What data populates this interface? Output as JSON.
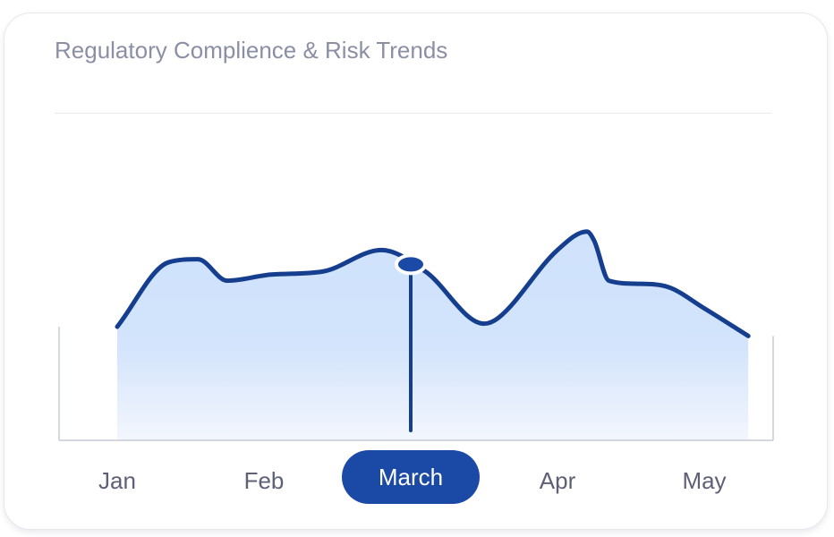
{
  "card": {
    "title": "Regulatory Complience & Risk Trends"
  },
  "colors": {
    "line": "#153f8e",
    "fill_top": "#cfe2fc",
    "fill_bottom": "#f3f6fd",
    "highlight": "#1a4aa6",
    "axis": "#c7cad6"
  },
  "chart_data": {
    "type": "area",
    "title": "",
    "xlabel": "",
    "ylabel": "",
    "categories": [
      "Jan",
      "Feb",
      "March",
      "Apr",
      "May"
    ],
    "selected_category": "March",
    "grid": false,
    "legend": "none",
    "ylim": [
      0,
      100
    ],
    "x": [
      0,
      0.35,
      0.55,
      0.75,
      1.05,
      1.4,
      1.8,
      2.1,
      2.5,
      2.6,
      3.0,
      3.2,
      3.25,
      3.35,
      3.55,
      3.75,
      4.0,
      4.3
    ],
    "series": [
      {
        "values": [
          37,
          58,
          59,
          52,
          54,
          55,
          62,
          55,
          38,
          40,
          62,
          68,
          65,
          52,
          51,
          50,
          43,
          34
        ]
      }
    ]
  }
}
